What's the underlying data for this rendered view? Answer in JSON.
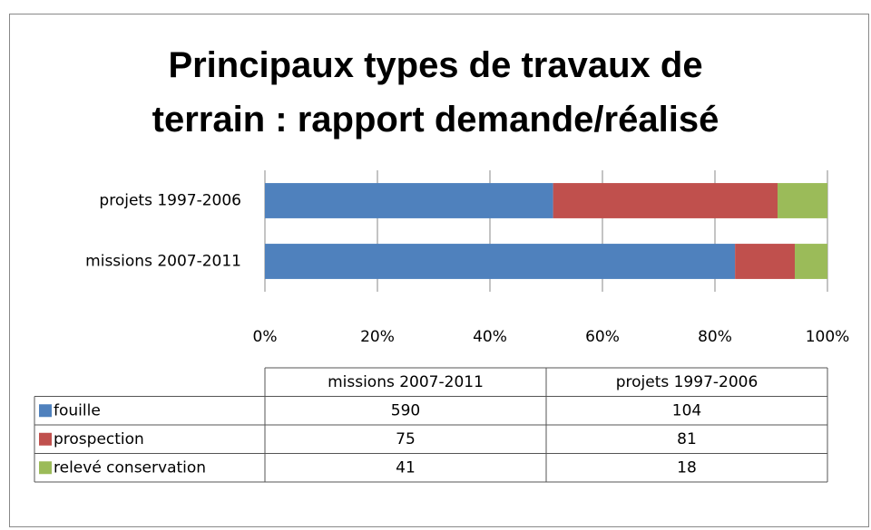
{
  "chart_data": {
    "type": "bar",
    "orientation": "horizontal",
    "stacking": "percent",
    "title": "Principaux types de travaux de terrain : rapport demande/réalisé",
    "categories": [
      "missions 2007-2011",
      "projets 1997-2006"
    ],
    "series": [
      {
        "name": "fouille",
        "color": "#4f81bd",
        "values": [
          590,
          104
        ]
      },
      {
        "name": "prospection",
        "color": "#c0504d",
        "values": [
          75,
          81
        ]
      },
      {
        "name": "relevé conservation",
        "color": "#9bbb59",
        "values": [
          41,
          18
        ]
      }
    ],
    "xlim": [
      0,
      100
    ],
    "xticks": [
      {
        "value": 0,
        "label": "0%"
      },
      {
        "value": 20,
        "label": "20%"
      },
      {
        "value": 40,
        "label": "40%"
      },
      {
        "value": 60,
        "label": "60%"
      },
      {
        "value": 80,
        "label": "80%"
      },
      {
        "value": 100,
        "label": "100%"
      }
    ],
    "grid": true,
    "data_table": true
  }
}
